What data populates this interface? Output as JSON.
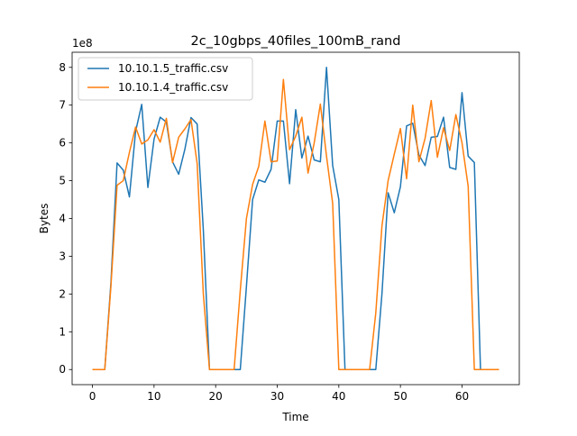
{
  "chart_data": {
    "type": "line",
    "title": "2c_10gbps_40files_100mB_rand",
    "xlabel": "Time",
    "ylabel": "Bytes",
    "y_offset_label": "1e8",
    "xlim": [
      -3.3,
      69.3
    ],
    "ylim": [
      -0.4,
      8.4
    ],
    "y_scale": 100000000,
    "x_ticks": [
      0,
      10,
      20,
      30,
      40,
      50,
      60
    ],
    "y_ticks": [
      0,
      1,
      2,
      3,
      4,
      5,
      6,
      7,
      8
    ],
    "grid": false,
    "legend_position": "top-left",
    "series": [
      {
        "name": "10.10.1.5_traffic.csv",
        "color": "#1f77b4",
        "x": [
          0,
          1,
          2,
          3,
          4,
          5,
          6,
          7,
          8,
          9,
          10,
          11,
          12,
          13,
          14,
          15,
          16,
          17,
          18,
          19,
          20,
          21,
          22,
          23,
          24,
          25,
          26,
          27,
          28,
          29,
          30,
          31,
          32,
          33,
          34,
          35,
          36,
          37,
          38,
          39,
          40,
          41,
          42,
          43,
          44,
          45,
          46,
          47,
          48,
          49,
          50,
          51,
          52,
          53,
          54,
          55,
          56,
          57,
          58,
          59,
          60,
          61,
          62,
          63,
          64,
          65,
          66
        ],
        "y": [
          0,
          0,
          0,
          2.3,
          5.47,
          5.28,
          4.57,
          6.3,
          7.02,
          4.82,
          6.1,
          6.68,
          6.55,
          5.5,
          5.17,
          5.83,
          6.67,
          6.5,
          3.7,
          0,
          0,
          0,
          0,
          0,
          0,
          2.2,
          4.5,
          5.02,
          4.96,
          5.3,
          6.58,
          6.58,
          4.92,
          6.88,
          5.6,
          6.18,
          5.55,
          5.5,
          8.0,
          5.4,
          4.5,
          0,
          0,
          0,
          0,
          0,
          0,
          2.0,
          4.68,
          4.15,
          4.84,
          6.45,
          6.52,
          5.68,
          5.4,
          6.15,
          6.17,
          6.68,
          5.35,
          5.3,
          7.33,
          5.65,
          5.48,
          0,
          0,
          0,
          0
        ]
      },
      {
        "name": "10.10.1.4_traffic.csv",
        "color": "#ff7f0e",
        "x": [
          0,
          1,
          2,
          3,
          4,
          5,
          6,
          7,
          8,
          9,
          10,
          11,
          12,
          13,
          14,
          15,
          16,
          17,
          18,
          19,
          20,
          21,
          22,
          23,
          24,
          25,
          26,
          27,
          28,
          29,
          30,
          31,
          32,
          33,
          34,
          35,
          36,
          37,
          38,
          39,
          40,
          41,
          42,
          43,
          44,
          45,
          46,
          47,
          48,
          49,
          50,
          51,
          52,
          53,
          54,
          55,
          56,
          57,
          58,
          59,
          60,
          61,
          62,
          63,
          64,
          65,
          66
        ],
        "y": [
          0,
          0,
          0,
          2.2,
          4.88,
          5.0,
          5.75,
          6.42,
          5.97,
          6.08,
          6.35,
          6.02,
          6.65,
          5.48,
          6.15,
          6.37,
          6.62,
          5.45,
          2.0,
          0,
          0,
          0,
          0,
          0,
          2.1,
          4.0,
          4.9,
          5.38,
          6.58,
          5.5,
          5.52,
          7.68,
          5.82,
          6.18,
          6.68,
          5.2,
          6.0,
          7.03,
          5.65,
          4.4,
          0,
          0,
          0,
          0,
          0,
          0,
          1.5,
          3.8,
          5.0,
          5.7,
          6.38,
          5.05,
          7.0,
          5.5,
          6.12,
          7.12,
          5.62,
          6.4,
          5.8,
          6.75,
          6.0,
          4.85,
          0,
          0,
          0,
          0,
          0
        ]
      }
    ]
  }
}
